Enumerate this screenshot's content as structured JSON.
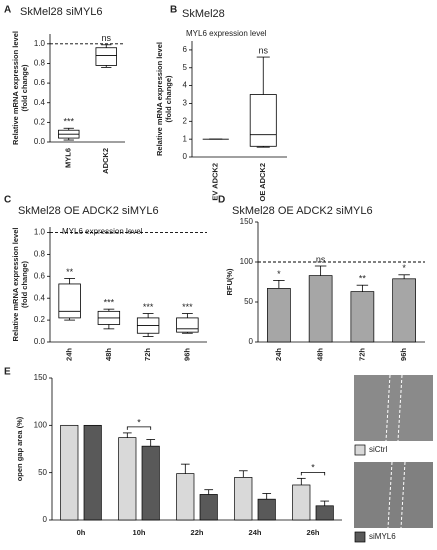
{
  "chart_data": [
    {
      "type": "box",
      "label": "A",
      "title": "SkMel28 siMYL6",
      "y_label": [
        "Relative mRNA expression level",
        "(fold change)"
      ],
      "categories": [
        "MYL6",
        "ADCK2"
      ],
      "boxes": [
        {
          "min": 0.02,
          "q1": 0.04,
          "median": 0.08,
          "q3": 0.12,
          "max": 0.14
        },
        {
          "min": 0.76,
          "q1": 0.78,
          "median": 0.88,
          "q3": 0.96,
          "max": 0.99
        }
      ],
      "annotations": [
        "***",
        "ns"
      ],
      "reference_line": 1,
      "ylim": [
        0,
        1.1
      ],
      "yticks": [
        {
          "value": 0,
          "label": "0.0"
        },
        {
          "value": 0.2,
          "label": "0.2"
        },
        {
          "value": 0.4,
          "label": "0.4"
        },
        {
          "value": 0.6,
          "label": "0.6"
        },
        {
          "value": 0.8,
          "label": "0.8"
        },
        {
          "value": 1,
          "label": "1.0"
        }
      ]
    },
    {
      "type": "box",
      "label": "B",
      "title": "SkMel28",
      "subtitle": "MYL6 expression level",
      "y_label": [
        "Relative mRNA expression level",
        "(fold change)"
      ],
      "categories": [
        "EV ADCK2",
        "OE ADCK2"
      ],
      "boxes": [
        {
          "min": 1,
          "q1": 1,
          "median": 1,
          "q3": 1,
          "max": 1
        },
        {
          "min": 0.55,
          "q1": 0.6,
          "median": 1.25,
          "q3": 3.5,
          "max": 5.6
        }
      ],
      "annotations": [
        null,
        "ns"
      ],
      "ylim": [
        0,
        6.5
      ],
      "yticks": [
        0,
        1,
        2,
        3,
        4,
        5,
        6
      ]
    },
    {
      "type": "box",
      "label": "C",
      "title": "SkMel28 OE ADCK2 siMYL6",
      "subtitle": "MYL6 expression level",
      "y_label": [
        "Relative mRNA expression level",
        "(fold change)"
      ],
      "categories": [
        "24h",
        "48h",
        "72h",
        "96h"
      ],
      "boxes": [
        {
          "min": 0.2,
          "q1": 0.22,
          "median": 0.28,
          "q3": 0.53,
          "max": 0.58
        },
        {
          "min": 0.12,
          "q1": 0.16,
          "median": 0.22,
          "q3": 0.28,
          "max": 0.3
        },
        {
          "min": 0.05,
          "q1": 0.08,
          "median": 0.15,
          "q3": 0.22,
          "max": 0.26
        },
        {
          "min": 0.08,
          "q1": 0.09,
          "median": 0.12,
          "q3": 0.22,
          "max": 0.26
        }
      ],
      "annotations": [
        "**",
        "***",
        "***",
        "***"
      ],
      "reference_line": 1,
      "ylim": [
        0,
        1.05
      ],
      "yticks": [
        {
          "value": 0,
          "label": "0.0"
        },
        {
          "value": 0.2,
          "label": "0.2"
        },
        {
          "value": 0.4,
          "label": "0.4"
        },
        {
          "value": 0.6,
          "label": "0.6"
        },
        {
          "value": 0.8,
          "label": "0.8"
        },
        {
          "value": 1,
          "label": "1.0"
        }
      ]
    },
    {
      "type": "bar",
      "label": "D",
      "title": "SkMel28 OE ADCK2 siMYL6",
      "y_label": [
        "RFU(%)"
      ],
      "categories": [
        "24h",
        "48h",
        "72h",
        "96h"
      ],
      "values": [
        67,
        83,
        63,
        79
      ],
      "errors": [
        10,
        12,
        8,
        5
      ],
      "color": "#a6a6a6",
      "annotations": [
        "*",
        "ns",
        "**",
        "*"
      ],
      "reference_line": 100,
      "ylim": [
        0,
        150
      ],
      "yticks": [
        0,
        50,
        100,
        150
      ]
    },
    {
      "type": "grouped_bar",
      "label": "E",
      "y_label": [
        "open gap area (%)"
      ],
      "categories": [
        "0h",
        "10h",
        "22h",
        "24h",
        "26h"
      ],
      "series": [
        {
          "name": "siCtrl",
          "color": "#d9d9d9",
          "values": [
            100,
            87,
            49,
            45,
            37
          ],
          "errors": [
            0,
            5,
            10,
            7,
            7
          ]
        },
        {
          "name": "siMYL6",
          "color": "#595959",
          "values": [
            100,
            78,
            27,
            22,
            15
          ],
          "errors": [
            0,
            7,
            5,
            6,
            5
          ]
        }
      ],
      "annotations": [
        null,
        "*",
        null,
        null,
        "*"
      ],
      "ylim": [
        0,
        150
      ],
      "yticks": [
        0,
        50,
        100,
        150
      ]
    }
  ]
}
